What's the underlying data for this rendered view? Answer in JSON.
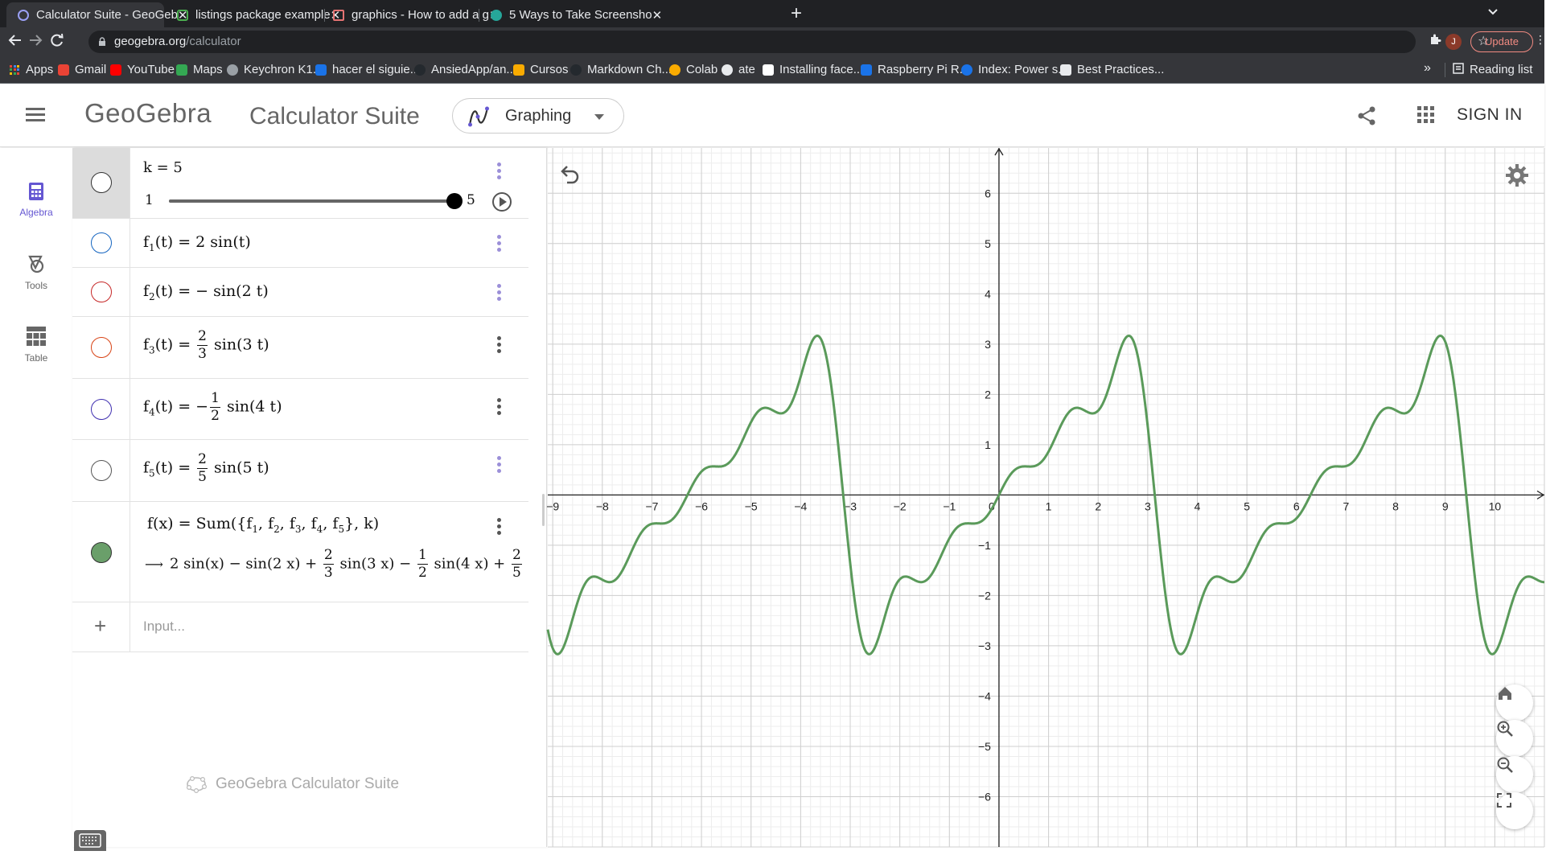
{
  "browser": {
    "tabs": [
      {
        "title": "Calculator Suite - GeoGeb",
        "active": true
      },
      {
        "title": "listings package example",
        "active": false
      },
      {
        "title": "graphics - How to add a g",
        "active": false
      },
      {
        "title": "5 Ways to Take Screensho",
        "active": false
      }
    ],
    "url_host": "geogebra.org",
    "url_path": "/calculator",
    "avatar_letter": "J",
    "update_label": "Update",
    "bookmarks": [
      {
        "label": "Apps",
        "color": "#4285f4"
      },
      {
        "label": "Gmail",
        "color": "#ea4335"
      },
      {
        "label": "YouTube",
        "color": "#ff0000"
      },
      {
        "label": "Maps",
        "color": "#34a853"
      },
      {
        "label": "Keychron K1...",
        "color": "#9aa0a6"
      },
      {
        "label": "hacer el siguie...",
        "color": "#1a73e8"
      },
      {
        "label": "AnsiedApp/an...",
        "color": "#24292e"
      },
      {
        "label": "Cursos",
        "color": "#f9ab00"
      },
      {
        "label": "Markdown Ch...",
        "color": "#24292e"
      },
      {
        "label": "Colab",
        "color": "#f9ab00"
      },
      {
        "label": "ate",
        "color": "#e8eaed"
      },
      {
        "label": "Installing face...",
        "color": "#ffffff"
      },
      {
        "label": "Raspberry Pi R...",
        "color": "#1a73e8"
      },
      {
        "label": "Index: Power s...",
        "color": "#1a73e8"
      },
      {
        "label": "Best Practices...",
        "color": "#e8eaed"
      }
    ],
    "more_label": "»",
    "reading_list_label": "Reading list"
  },
  "header": {
    "logo_text": "GeoGebra",
    "suite_title": "Calculator Suite",
    "app_switch_label": "Graphing",
    "sign_in_label": "SIGN IN"
  },
  "rail": [
    {
      "label": "Algebra",
      "icon": "calculator-icon",
      "active": true
    },
    {
      "label": "Tools",
      "icon": "tools-icon",
      "active": false
    },
    {
      "label": "Table",
      "icon": "table-icon",
      "active": false
    }
  ],
  "algebra": {
    "slider": {
      "expr": "k = 5",
      "min": "1",
      "max": "5",
      "value": 5,
      "min_val": 1,
      "max_val": 5
    },
    "funcs": [
      {
        "name": "f",
        "sub": "1",
        "lhs_rest": "(t) = ",
        "rhs": "2 sin(t)",
        "color": "#1565c0"
      },
      {
        "name": "f",
        "sub": "2",
        "lhs_rest": "(t) = ",
        "rhs": "− sin(2 t)",
        "color": "#c62828"
      },
      {
        "name": "f",
        "sub": "3",
        "lhs_rest": "(t) = ",
        "frac_sign": "",
        "frac_n": "2",
        "frac_d": "3",
        "rhs": "sin(3 t)",
        "color": "#d84315"
      },
      {
        "name": "f",
        "sub": "4",
        "lhs_rest": "(t) = ",
        "frac_sign": "−",
        "frac_n": "1",
        "frac_d": "2",
        "rhs": "sin(4 t)",
        "color": "#3f2fb0"
      },
      {
        "name": "f",
        "sub": "5",
        "lhs_rest": "(t) = ",
        "frac_sign": "",
        "frac_n": "2",
        "frac_d": "5",
        "rhs": "sin(5 t)",
        "color": "#555555"
      }
    ],
    "sum": {
      "lhs": "f(x) = Sum({f",
      "subs": [
        "1",
        "2",
        "3",
        "4",
        "5"
      ],
      "tail": "}, k)",
      "arrow": "⟶",
      "out_a": "2 sin(x) − sin(2 x) + ",
      "f1_n": "2",
      "f1_d": "3",
      "out_b": " sin(3 x) − ",
      "f2_n": "1",
      "f2_d": "2",
      "out_c": " sin(4 x) + ",
      "f3_n": "2",
      "f3_d": "5",
      "color": "#6a9f6a"
    },
    "input_placeholder": "Input...",
    "footer": "GeoGebra Calculator Suite"
  },
  "chart_data": {
    "type": "line",
    "series": [
      {
        "expression": "2 sin(x) − sin(2 x) + 2/3 sin(3 x) − 1/2 sin(4 x) + 2/5 sin(5 x)",
        "color": "#5a9a5a"
      }
    ],
    "xlim": [
      -9.1,
      11.0
    ],
    "ylim": [
      -7.0,
      6.9
    ],
    "x_ticks": [
      -9,
      -8,
      -7,
      -6,
      -5,
      -4,
      -3,
      -2,
      -1,
      0,
      1,
      2,
      3,
      4,
      5,
      6,
      7,
      8,
      9,
      10
    ],
    "y_ticks": [
      -6,
      -5,
      -4,
      -3,
      -2,
      -1,
      1,
      2,
      3,
      4,
      5,
      6
    ],
    "grid": true
  },
  "colors": {
    "accent": "#6557d2",
    "curve": "#5a9a5a"
  }
}
